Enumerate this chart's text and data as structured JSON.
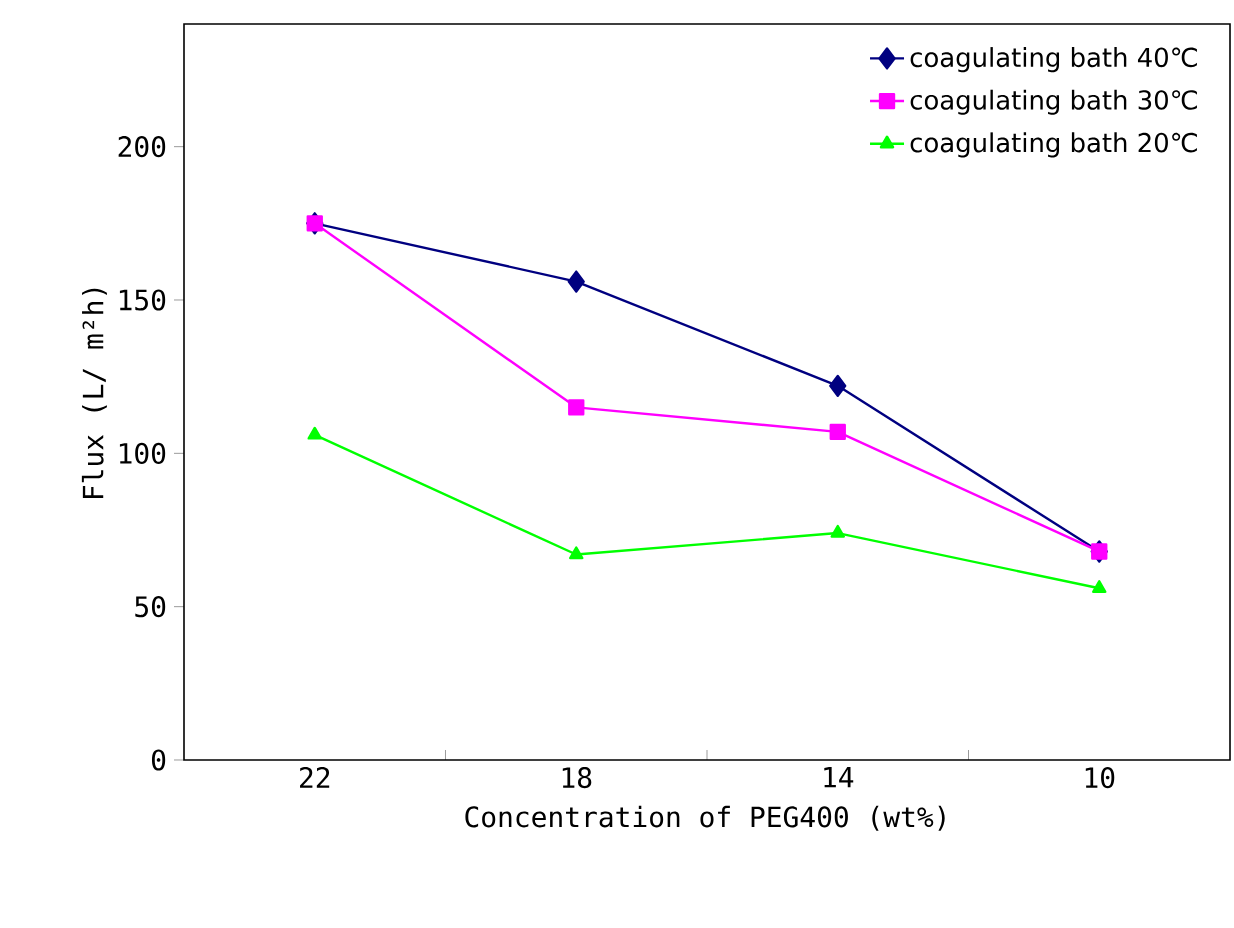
{
  "chart_data": {
    "type": "line",
    "xlabel": "Concentration of PEG400 (wt%)",
    "ylabel": "Flux (L/ m²h)",
    "categories": [
      "22",
      "18",
      "14",
      "10"
    ],
    "series": [
      {
        "name": "coagulating bath 40℃",
        "color": "#000080",
        "marker": "diamond",
        "values": [
          175,
          156,
          122,
          68
        ]
      },
      {
        "name": "coagulating bath 30℃",
        "color": "#ff00ff",
        "marker": "square",
        "values": [
          175,
          115,
          107,
          68
        ]
      },
      {
        "name": "coagulating bath 20℃",
        "color": "#00ff00",
        "marker": "triangle",
        "values": [
          106,
          67,
          74,
          56
        ]
      }
    ],
    "ylim": [
      0,
      240
    ],
    "yticks": [
      0,
      50,
      100,
      150,
      200
    ],
    "grid": false,
    "legend": "top right",
    "line_style": "solid"
  }
}
